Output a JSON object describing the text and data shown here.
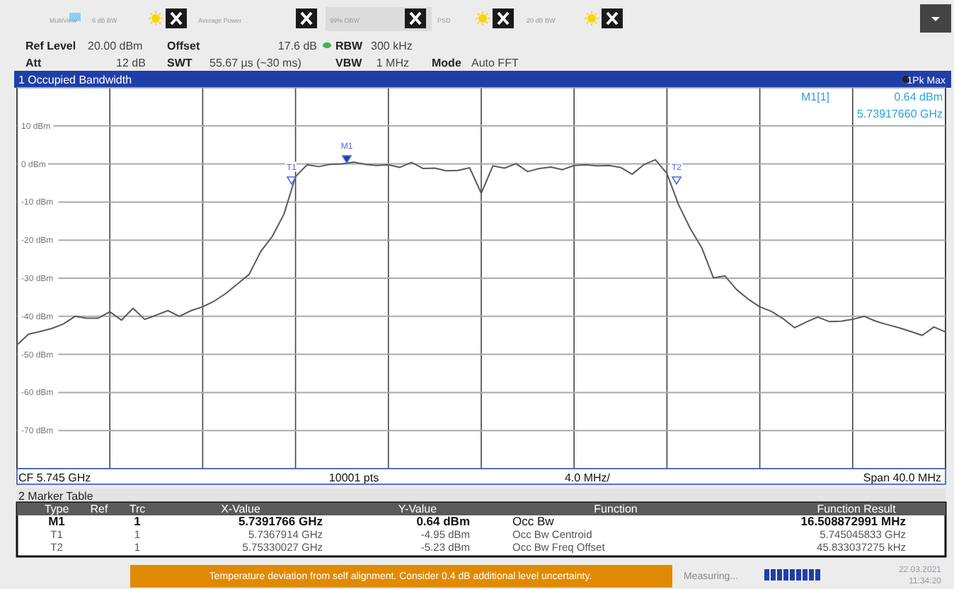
{
  "chart_data": {
    "type": "line",
    "title": "1 Occupied Bandwidth",
    "categories": [
      null,
      null,
      null,
      null,
      null,
      null,
      null,
      null,
      null,
      null,
      null,
      null,
      null,
      null,
      null,
      null,
      null,
      null,
      null,
      null,
      null,
      null,
      null,
      null,
      null,
      null,
      null,
      null,
      null,
      null,
      null,
      null,
      null,
      null,
      null,
      null,
      null,
      null,
      null,
      null,
      null,
      null,
      null,
      null,
      null,
      null,
      null,
      null,
      null,
      null,
      null,
      null,
      null,
      null,
      null,
      null,
      null,
      null,
      null,
      null,
      null,
      null,
      null,
      null,
      null,
      null,
      null,
      null,
      null,
      null,
      null,
      null,
      null,
      null,
      null,
      null,
      null,
      null,
      null,
      null,
      null
    ],
    "series": [
      {
        "color": "#5a5a5a",
        "values": [
          -47.5,
          -44.7,
          -44,
          -43.2,
          -42,
          -40,
          -40.5,
          -40.5,
          -38.8,
          -41,
          -37.9,
          -40.8,
          -39.7,
          -38.5,
          -40,
          -38.5,
          -37.5,
          -36,
          -34,
          -31.5,
          -29,
          -23,
          -19,
          -13.2,
          -3.3,
          -0.2,
          -0.7,
          -0.1,
          0,
          0.5,
          -0.1,
          -0.4,
          -0.2,
          -0.9,
          0.4,
          -1.2,
          -1.1,
          -1.8,
          -1.7,
          -1,
          -7.7,
          -0.5,
          -1.1,
          0.1,
          -2,
          -1.2,
          -0.8,
          -1.5,
          -0.4,
          -0.2,
          -0.5,
          -0.4,
          -0.9,
          -2.7,
          -0.2,
          1.1,
          -2.5,
          -10.7,
          -16.9,
          -22,
          -29.9,
          -29.4,
          -33,
          -35.5,
          -37.5,
          -38.7,
          -40.6,
          -43,
          -41.5,
          -40.2,
          -41.4,
          -41.3,
          -40.8,
          -40,
          -41.3,
          -42.2,
          -43,
          -44,
          -45,
          -42.8,
          -44.1
        ]
      }
    ],
    "ylim": [
      -80,
      20
    ],
    "yticks": [
      {
        "value": 20,
        "label": null
      },
      {
        "value": 10,
        "label": "10 dBm"
      },
      {
        "value": 0,
        "label": "0 dBm"
      },
      {
        "value": -10,
        "label": "-10 dBm"
      },
      {
        "value": -20,
        "label": "-20 dBm"
      },
      {
        "value": -30,
        "label": "-30 dBm"
      },
      {
        "value": -40,
        "label": "-40 dBm"
      },
      {
        "value": -50,
        "label": "-50 dBm"
      },
      {
        "value": -60,
        "label": "-60 dBm"
      },
      {
        "value": -70,
        "label": "-70 dBm"
      },
      {
        "value": -80,
        "label": null
      }
    ],
    "grid": true,
    "annotations": [
      "MultiView",
      "6 dB BW",
      "Average Power",
      "99% OBW",
      "PSD",
      "20 dB BW",
      "Ref Level",
      "20.00 dBm",
      "Offset",
      "17.6 dB",
      "RBW",
      "300 kHz",
      "Att",
      "12 dB",
      "SWT",
      "55.67 µs (~30 ms)",
      "VBW",
      "1 MHz",
      "Mode",
      "Auto FFT",
      "1Pk Max",
      "M1[1]",
      "0.64 dBm",
      "5.73917660 GHz",
      "CF 5.745 GHz",
      "10001 pts",
      "4.0 MHz/",
      "Span 40.0 MHz",
      "2 Marker Table",
      "Type",
      "Ref",
      "Trc",
      "X-Value",
      "Y-Value",
      "Function",
      "Function Result",
      "M1",
      "1",
      "5.7391766 GHz",
      "0.64 dBm",
      "Occ Bw",
      "16.508872991 MHz",
      "T1",
      "1",
      "5.7367914 GHz",
      "-4.95 dBm",
      "Occ Bw Centroid",
      "5.745045833 GHz",
      "T2",
      "1",
      "5.75330027 GHz",
      "-5.23 dBm",
      "Occ Bw Freq Offset",
      "45.833037275 kHz",
      "Temperature deviation from self alignment. Consider 0.4 dB additional level uncertainty.",
      "Measuring...",
      "22.03.2021",
      "11:34:20",
      "M1",
      "T1",
      "T2"
    ]
  }
}
